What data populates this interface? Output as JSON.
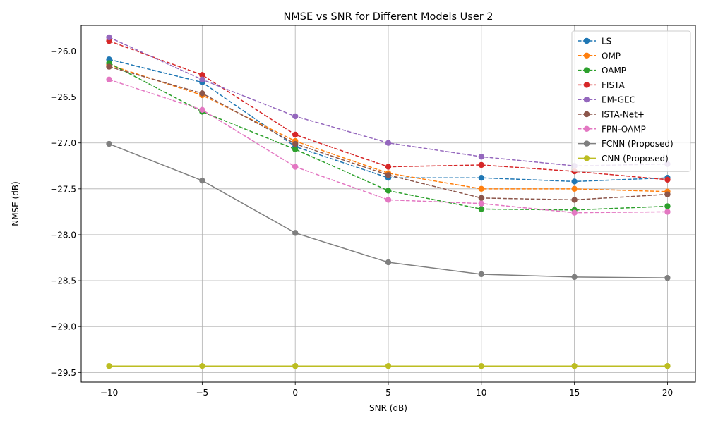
{
  "chart_data": {
    "type": "line",
    "title": "NMSE vs SNR for Different Models User 2",
    "xlabel": "SNR (dB)",
    "ylabel": "NMSE (dB)",
    "x": [
      -10,
      -5,
      0,
      5,
      10,
      15,
      20
    ],
    "xlim": [
      -11.5,
      21.5
    ],
    "ylim": [
      -29.605,
      -25.72
    ],
    "xticks": [
      -10,
      -5,
      0,
      5,
      10,
      15,
      20
    ],
    "xtick_labels": [
      "−10",
      "−5",
      "0",
      "5",
      "10",
      "15",
      "20"
    ],
    "yticks": [
      -29.5,
      -29.0,
      -28.5,
      -28.0,
      -27.5,
      -27.0,
      -26.5,
      -26.0
    ],
    "ytick_labels": [
      "−29.5",
      "−29.0",
      "−28.5",
      "−28.0",
      "−27.5",
      "−27.0",
      "−26.5",
      "−26.0"
    ],
    "grid": true,
    "legend_position": "top-right",
    "series": [
      {
        "name": "LS",
        "color": "#1f77b4",
        "dashed": true,
        "values": [
          -26.09,
          -26.34,
          -27.04,
          -27.38,
          -27.38,
          -27.42,
          -27.38
        ]
      },
      {
        "name": "OMP",
        "color": "#ff7f0e",
        "dashed": true,
        "values": [
          -26.15,
          -26.48,
          -26.98,
          -27.33,
          -27.5,
          -27.5,
          -27.53
        ]
      },
      {
        "name": "OAMP",
        "color": "#2ca02c",
        "dashed": true,
        "values": [
          -26.13,
          -26.66,
          -27.07,
          -27.52,
          -27.72,
          -27.73,
          -27.69
        ]
      },
      {
        "name": "FISTA",
        "color": "#d62728",
        "dashed": true,
        "values": [
          -25.89,
          -26.26,
          -26.91,
          -27.26,
          -27.24,
          -27.31,
          -27.4
        ]
      },
      {
        "name": "EM-GEC",
        "color": "#9467bd",
        "dashed": true,
        "values": [
          -25.85,
          -26.31,
          -26.71,
          -27.0,
          -27.15,
          -27.25,
          -27.23
        ]
      },
      {
        "name": "ISTA-Net+",
        "color": "#8c564b",
        "dashed": true,
        "values": [
          -26.17,
          -26.46,
          -27.01,
          -27.35,
          -27.6,
          -27.62,
          -27.56
        ]
      },
      {
        "name": "FPN-OAMP",
        "color": "#e377c2",
        "dashed": true,
        "values": [
          -26.31,
          -26.64,
          -27.26,
          -27.62,
          -27.66,
          -27.76,
          -27.75
        ]
      },
      {
        "name": "FCNN (Proposed)",
        "color": "#7f7f7f",
        "dashed": false,
        "values": [
          -27.01,
          -27.41,
          -27.98,
          -28.3,
          -28.43,
          -28.46,
          -28.47
        ]
      },
      {
        "name": "CNN (Proposed)",
        "color": "#bcbd22",
        "dashed": false,
        "values": [
          -29.43,
          -29.43,
          -29.43,
          -29.43,
          -29.43,
          -29.43,
          -29.43
        ]
      }
    ]
  }
}
